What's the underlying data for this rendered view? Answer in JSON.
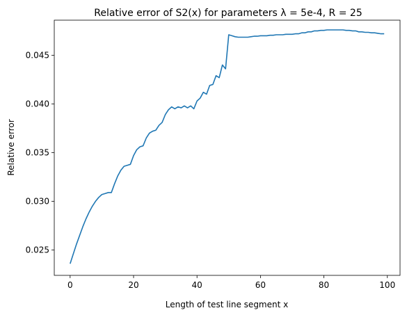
{
  "chart_data": {
    "type": "line",
    "title": "Relative error of S2(x) for parameters λ = 5e-4, R = 25",
    "xlabel": "Length of test line segment x",
    "ylabel": "Relative error",
    "xlim": [
      -5,
      104
    ],
    "ylim": [
      0.0224,
      0.0486
    ],
    "xticks": [
      0,
      20,
      40,
      60,
      80,
      100
    ],
    "xtick_labels": [
      "0",
      "20",
      "40",
      "60",
      "80",
      "100"
    ],
    "yticks": [
      0.025,
      0.03,
      0.035,
      0.04,
      0.045
    ],
    "ytick_labels": [
      "0.025",
      "0.030",
      "0.035",
      "0.040",
      "0.045"
    ],
    "grid": false,
    "legend": "none",
    "series": [
      {
        "color": "#1f77b4",
        "x": [
          0,
          1,
          2,
          3,
          4,
          5,
          6,
          7,
          8,
          9,
          10,
          11,
          12,
          13,
          14,
          15,
          16,
          17,
          18,
          19,
          20,
          21,
          22,
          23,
          24,
          25,
          26,
          27,
          28,
          29,
          30,
          31,
          32,
          33,
          34,
          35,
          36,
          37,
          38,
          39,
          40,
          41,
          42,
          43,
          44,
          45,
          46,
          47,
          48,
          49,
          50,
          51,
          52,
          53,
          54,
          55,
          56,
          57,
          58,
          59,
          60,
          61,
          62,
          63,
          64,
          65,
          66,
          67,
          68,
          69,
          70,
          71,
          72,
          73,
          74,
          75,
          76,
          77,
          78,
          79,
          80,
          81,
          82,
          83,
          84,
          85,
          86,
          87,
          88,
          89,
          90,
          91,
          92,
          93,
          94,
          95,
          96,
          97,
          98,
          99
        ],
        "y": [
          0.0236,
          0.0246,
          0.0256,
          0.0265,
          0.0274,
          0.0282,
          0.0289,
          0.0295,
          0.03,
          0.0304,
          0.0307,
          0.0308,
          0.0309,
          0.0309,
          0.0318,
          0.0326,
          0.0332,
          0.0336,
          0.0337,
          0.0338,
          0.0347,
          0.0353,
          0.0356,
          0.0357,
          0.0365,
          0.037,
          0.0372,
          0.0373,
          0.0378,
          0.0381,
          0.0389,
          0.0394,
          0.0397,
          0.0395,
          0.0397,
          0.0396,
          0.0398,
          0.0396,
          0.0398,
          0.0395,
          0.0403,
          0.0406,
          0.0412,
          0.041,
          0.0419,
          0.042,
          0.0429,
          0.0427,
          0.044,
          0.0436,
          0.0471,
          0.047,
          0.0469,
          0.04685,
          0.04685,
          0.04685,
          0.04685,
          0.0469,
          0.04695,
          0.04695,
          0.047,
          0.047,
          0.047,
          0.04705,
          0.04705,
          0.0471,
          0.0471,
          0.0471,
          0.04715,
          0.04715,
          0.04715,
          0.0472,
          0.0472,
          0.0473,
          0.0473,
          0.0474,
          0.0474,
          0.0475,
          0.0475,
          0.04755,
          0.04755,
          0.0476,
          0.0476,
          0.0476,
          0.0476,
          0.0476,
          0.0476,
          0.04755,
          0.04755,
          0.0475,
          0.0475,
          0.0474,
          0.0474,
          0.04735,
          0.04735,
          0.0473,
          0.0473,
          0.04725,
          0.0472,
          0.0472
        ]
      }
    ]
  }
}
